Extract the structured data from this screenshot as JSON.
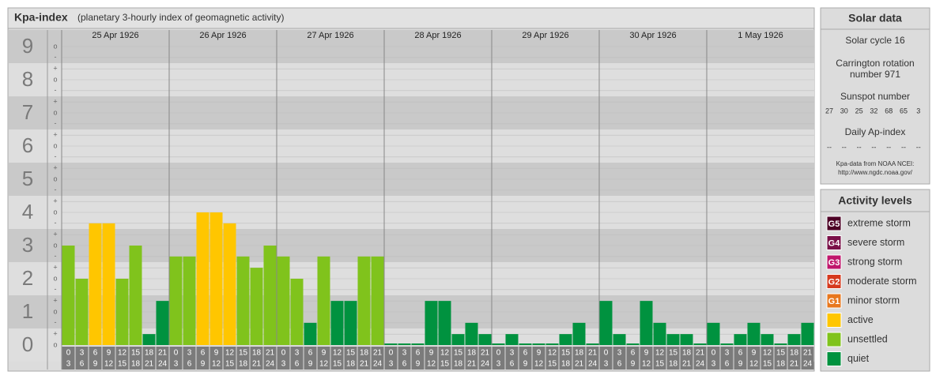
{
  "chart_data": {
    "type": "bar",
    "title": "Kpa-index",
    "subtitle": "(planetary 3-hourly index of geomagnetic activity)",
    "ylim": [
      0,
      9.5
    ],
    "yticks": [
      {
        "value": 0,
        "label": "0"
      },
      {
        "value": 1,
        "label": "1"
      },
      {
        "value": 2,
        "label": "2"
      },
      {
        "value": 3,
        "label": "3"
      },
      {
        "value": 4,
        "label": "4"
      },
      {
        "value": 5,
        "label": "5"
      },
      {
        "value": 6,
        "label": "6"
      },
      {
        "value": 7,
        "label": "7"
      },
      {
        "value": 8,
        "label": "8"
      },
      {
        "value": 9,
        "label": "9"
      }
    ],
    "minor_ticks": [
      {
        "value": 0,
        "label": "o"
      },
      {
        "value": 0.33,
        "label": "+"
      },
      {
        "value": 0.67,
        "label": "-"
      },
      {
        "value": 1,
        "label": "o"
      },
      {
        "value": 1.33,
        "label": "+"
      },
      {
        "value": 1.67,
        "label": "-"
      },
      {
        "value": 2,
        "label": "o"
      },
      {
        "value": 2.33,
        "label": "+"
      },
      {
        "value": 2.67,
        "label": "-"
      },
      {
        "value": 3,
        "label": "o"
      },
      {
        "value": 3.33,
        "label": "+"
      },
      {
        "value": 3.67,
        "label": "-"
      },
      {
        "value": 4,
        "label": "o"
      },
      {
        "value": 4.33,
        "label": "+"
      },
      {
        "value": 4.67,
        "label": "-"
      },
      {
        "value": 5,
        "label": "o"
      },
      {
        "value": 5.33,
        "label": "+"
      },
      {
        "value": 5.67,
        "label": "-"
      },
      {
        "value": 6,
        "label": "o"
      },
      {
        "value": 6.33,
        "label": "+"
      },
      {
        "value": 6.67,
        "label": "-"
      },
      {
        "value": 7,
        "label": "o"
      },
      {
        "value": 7.33,
        "label": "+"
      },
      {
        "value": 7.67,
        "label": "-"
      },
      {
        "value": 8,
        "label": "o"
      },
      {
        "value": 8.33,
        "label": "+"
      },
      {
        "value": 8.67,
        "label": "-"
      },
      {
        "value": 9,
        "label": "o"
      }
    ],
    "hours": [
      [
        0,
        3
      ],
      [
        3,
        6
      ],
      [
        6,
        9
      ],
      [
        9,
        12
      ],
      [
        12,
        15
      ],
      [
        15,
        18
      ],
      [
        18,
        21
      ],
      [
        21,
        24
      ]
    ],
    "days": [
      {
        "date": "25 Apr 1926",
        "values": [
          3,
          2,
          3.67,
          3.67,
          2,
          3,
          0.33,
          1.33
        ],
        "colors": [
          "#80c31c",
          "#80c31c",
          "#ffc600",
          "#ffc600",
          "#80c31c",
          "#80c31c",
          "#00923f",
          "#00923f"
        ]
      },
      {
        "date": "26 Apr 1926",
        "values": [
          2.67,
          2.67,
          4,
          4,
          3.67,
          2.67,
          2.33,
          3
        ],
        "colors": [
          "#80c31c",
          "#80c31c",
          "#ffc600",
          "#ffc600",
          "#ffc600",
          "#80c31c",
          "#80c31c",
          "#80c31c"
        ]
      },
      {
        "date": "27 Apr 1926",
        "values": [
          2.67,
          2,
          0.67,
          2.67,
          1.33,
          1.33,
          2.67,
          2.67
        ],
        "colors": [
          "#80c31c",
          "#80c31c",
          "#00923f",
          "#80c31c",
          "#00923f",
          "#00923f",
          "#80c31c",
          "#80c31c"
        ]
      },
      {
        "date": "28 Apr 1926",
        "values": [
          0,
          0,
          0,
          1.33,
          1.33,
          0.33,
          0.67,
          0.33
        ],
        "colors": [
          "#00923f",
          "#00923f",
          "#00923f",
          "#00923f",
          "#00923f",
          "#00923f",
          "#00923f",
          "#00923f"
        ]
      },
      {
        "date": "29 Apr 1926",
        "values": [
          0,
          0.33,
          0,
          0,
          0,
          0.33,
          0.67,
          0
        ],
        "colors": [
          "#00923f",
          "#00923f",
          "#00923f",
          "#00923f",
          "#00923f",
          "#00923f",
          "#00923f",
          "#00923f"
        ]
      },
      {
        "date": "30 Apr 1926",
        "values": [
          1.33,
          0.33,
          0,
          1.33,
          0.67,
          0.33,
          0.33,
          0
        ],
        "colors": [
          "#00923f",
          "#00923f",
          "#00923f",
          "#00923f",
          "#00923f",
          "#00923f",
          "#00923f",
          "#00923f"
        ]
      },
      {
        "date": "1 May 1926",
        "values": [
          0.67,
          0,
          0.33,
          0.67,
          0.33,
          0,
          0.33,
          0.67
        ],
        "colors": [
          "#00923f",
          "#00923f",
          "#00923f",
          "#00923f",
          "#00923f",
          "#00923f",
          "#00923f",
          "#00923f"
        ]
      }
    ]
  },
  "solar": {
    "title": "Solar data",
    "cycle": "Solar cycle 16",
    "carrington_1": "Carrington rotation",
    "carrington_2": "number 971",
    "sunspot_title": "Sunspot number",
    "sunspots": [
      27,
      30,
      25,
      32,
      68,
      65,
      3
    ],
    "ap_title": "Daily Ap-index",
    "ap": [
      "--",
      "--",
      "--",
      "--",
      "--",
      "--",
      "--"
    ],
    "source_1": "Kpa-data from NOAA NCEI:",
    "source_2": "http://www.ngdc.noaa.gov/"
  },
  "levels": {
    "title": "Activity levels",
    "items": [
      {
        "code": "G5",
        "name": "extreme storm",
        "color": "#4d0025"
      },
      {
        "code": "G4",
        "name": "severe storm",
        "color": "#7a1048"
      },
      {
        "code": "G3",
        "name": "strong storm",
        "color": "#c0176c"
      },
      {
        "code": "G2",
        "name": "moderate storm",
        "color": "#d63a1e"
      },
      {
        "code": "G1",
        "name": "minor storm",
        "color": "#e8771e"
      },
      {
        "code": null,
        "name": "active",
        "color": "#ffc600"
      },
      {
        "code": null,
        "name": "unsettled",
        "color": "#80c31c"
      },
      {
        "code": null,
        "name": "quiet",
        "color": "#00923f"
      }
    ]
  }
}
